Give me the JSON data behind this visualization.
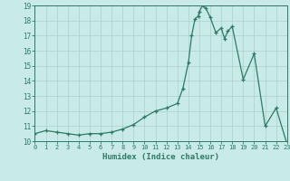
{
  "x": [
    0,
    1,
    2,
    3,
    4,
    5,
    6,
    7,
    8,
    9,
    10,
    11,
    12,
    13,
    13.5,
    14,
    14.3,
    14.6,
    14.9,
    15,
    15.3,
    15.6,
    16,
    16.5,
    17,
    17.3,
    17.6,
    18,
    19,
    20,
    21,
    22,
    23
  ],
  "y": [
    10.5,
    10.7,
    10.6,
    10.5,
    10.4,
    10.5,
    10.5,
    10.6,
    10.8,
    11.1,
    11.6,
    12.0,
    12.2,
    12.5,
    13.5,
    15.2,
    17.0,
    18.1,
    18.3,
    18.6,
    19.0,
    18.8,
    18.2,
    17.2,
    17.5,
    16.8,
    17.3,
    17.6,
    14.1,
    15.8,
    11.0,
    12.2,
    9.8
  ],
  "xlabel": "Humidex (Indice chaleur)",
  "xlim": [
    0,
    23
  ],
  "ylim": [
    10,
    19
  ],
  "yticks": [
    10,
    11,
    12,
    13,
    14,
    15,
    16,
    17,
    18,
    19
  ],
  "xticks": [
    0,
    1,
    2,
    3,
    4,
    5,
    6,
    7,
    8,
    9,
    10,
    11,
    12,
    13,
    14,
    15,
    16,
    17,
    18,
    19,
    20,
    21,
    22,
    23
  ],
  "line_color": "#2d7a65",
  "bg_color": "#c8eae8",
  "grid_color": "#aacfca",
  "tick_label_color": "#2d7a65"
}
